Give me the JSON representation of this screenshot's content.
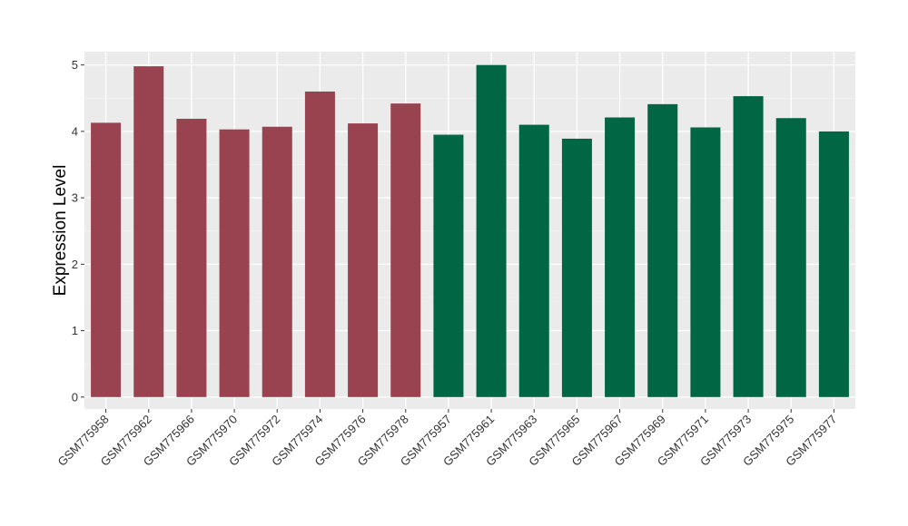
{
  "chart_data": {
    "type": "bar",
    "title": "",
    "xlabel": "",
    "ylabel": "Expression Level",
    "ylim": [
      -0.18,
      5.2
    ],
    "yticks": [
      0,
      1,
      2,
      3,
      4,
      5
    ],
    "grid": true,
    "background": "#EBEBEB",
    "categories": [
      "GSM775958",
      "GSM775962",
      "GSM775966",
      "GSM775970",
      "GSM775972",
      "GSM775974",
      "GSM775976",
      "GSM775978",
      "GSM775957",
      "GSM775961",
      "GSM775963",
      "GSM775965",
      "GSM775967",
      "GSM775969",
      "GSM775971",
      "GSM775973",
      "GSM775975",
      "GSM775977"
    ],
    "values": [
      4.13,
      4.98,
      4.19,
      4.03,
      4.07,
      4.6,
      4.12,
      4.42,
      3.95,
      5.0,
      4.1,
      3.89,
      4.21,
      4.41,
      4.06,
      4.53,
      4.2,
      4.0
    ],
    "colors": [
      "#9A4350",
      "#9A4350",
      "#9A4350",
      "#9A4350",
      "#9A4350",
      "#9A4350",
      "#9A4350",
      "#9A4350",
      "#006644",
      "#006644",
      "#006644",
      "#006644",
      "#006644",
      "#006644",
      "#006644",
      "#006644",
      "#006644",
      "#006644"
    ]
  }
}
